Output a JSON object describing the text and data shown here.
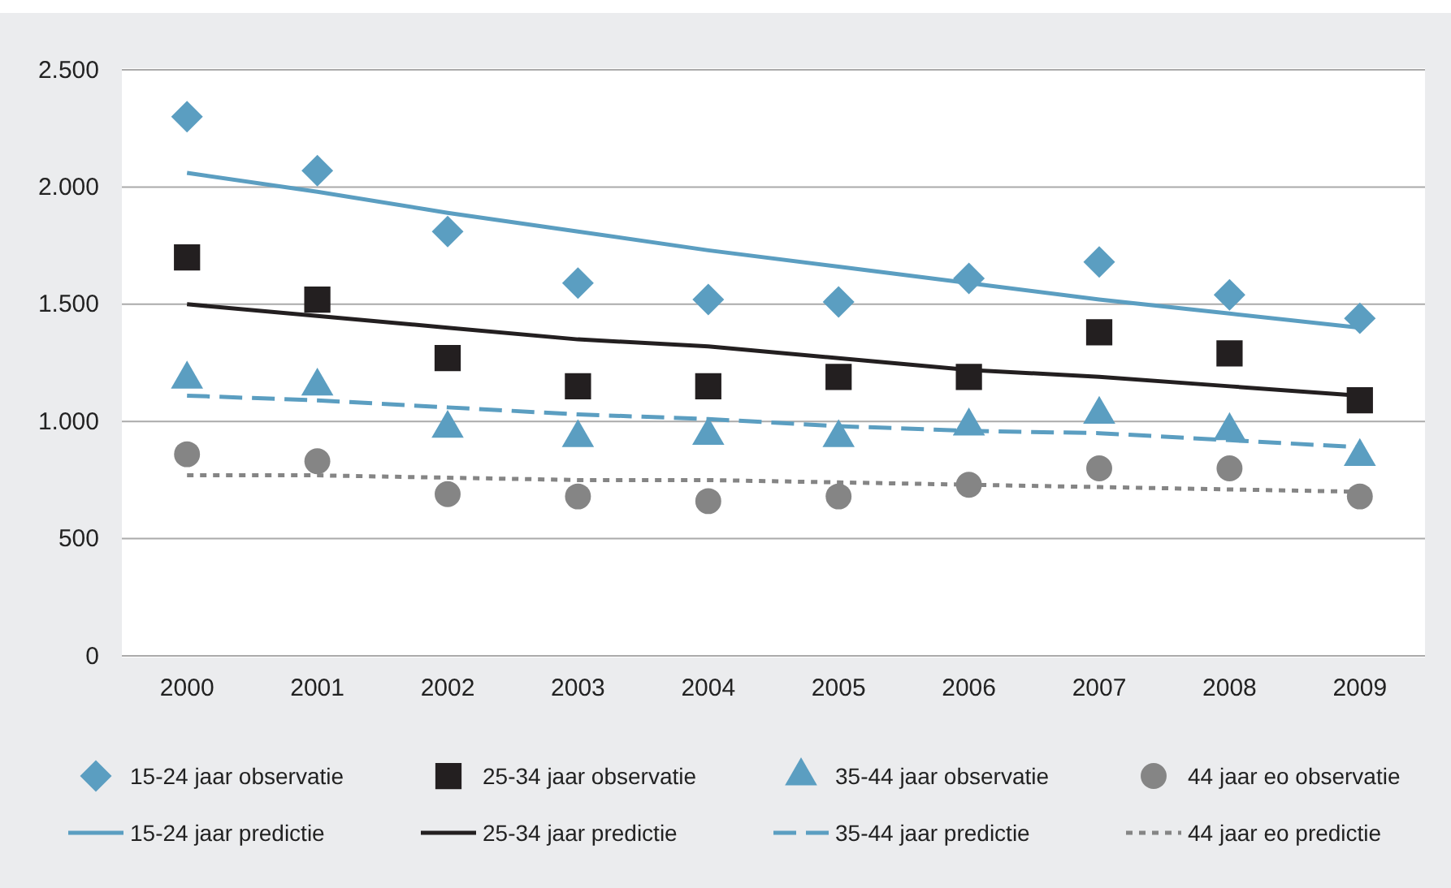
{
  "chart_data": {
    "type": "scatter",
    "categories": [
      "2000",
      "2001",
      "2002",
      "2003",
      "2004",
      "2005",
      "2006",
      "2007",
      "2008",
      "2009"
    ],
    "ylim": [
      0,
      2500
    ],
    "yticks": [
      {
        "value": 0,
        "label": "0"
      },
      {
        "value": 500,
        "label": "500"
      },
      {
        "value": 1000,
        "label": "1.000"
      },
      {
        "value": 1500,
        "label": "1.500"
      },
      {
        "value": 2000,
        "label": "2.000"
      },
      {
        "value": 2500,
        "label": "2.500"
      }
    ],
    "grid": "y",
    "legend": "bottom",
    "series": [
      {
        "name": "15-24 jaar observatie",
        "marker": "diamond",
        "color": "#5b9ec1",
        "values": [
          2300,
          2070,
          1810,
          1590,
          1520,
          1510,
          1610,
          1680,
          1540,
          1440
        ]
      },
      {
        "name": "25-34 jaar observatie",
        "marker": "square",
        "color": "#231f20",
        "values": [
          1700,
          1520,
          1270,
          1150,
          1150,
          1190,
          1190,
          1380,
          1290,
          1090
        ]
      },
      {
        "name": "35-44 jaar observatie",
        "marker": "triangle",
        "color": "#5b9ec1",
        "values": [
          1180,
          1150,
          970,
          930,
          940,
          930,
          980,
          1030,
          960,
          850
        ]
      },
      {
        "name": "44 jaar eo observatie",
        "marker": "circle",
        "color": "#858585",
        "values": [
          860,
          830,
          690,
          680,
          660,
          680,
          730,
          800,
          800,
          680
        ]
      },
      {
        "name": "15-24 jaar predictie",
        "type": "line",
        "line_style": "solid",
        "color": "#5b9ec1",
        "values": [
          2060,
          1980,
          1890,
          1810,
          1730,
          1660,
          1590,
          1520,
          1460,
          1400
        ]
      },
      {
        "name": "25-34 jaar predictie",
        "type": "line",
        "line_style": "solid",
        "color": "#231f20",
        "values": [
          1500,
          1450,
          1400,
          1350,
          1320,
          1270,
          1220,
          1190,
          1150,
          1110
        ]
      },
      {
        "name": "35-44 jaar predictie",
        "type": "line",
        "line_style": "dashed",
        "color": "#5b9ec1",
        "values": [
          1110,
          1090,
          1060,
          1030,
          1010,
          980,
          960,
          950,
          920,
          890
        ]
      },
      {
        "name": "44 jaar eo predictie",
        "type": "line",
        "line_style": "dotted",
        "color": "#858585",
        "values": [
          770,
          770,
          760,
          750,
          750,
          740,
          730,
          720,
          710,
          700
        ]
      }
    ]
  }
}
